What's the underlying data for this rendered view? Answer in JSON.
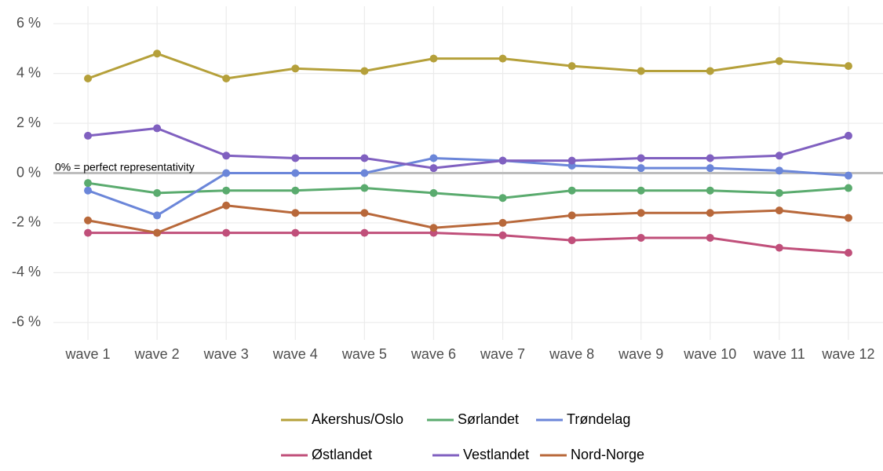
{
  "chart_data": {
    "type": "line",
    "categories": [
      "wave 1",
      "wave 2",
      "wave 3",
      "wave 4",
      "wave 5",
      "wave 6",
      "wave 7",
      "wave 8",
      "wave 9",
      "wave 10",
      "wave 11",
      "wave 12"
    ],
    "series": [
      {
        "name": "Akershus/Oslo",
        "color": "#b5a03a",
        "values": [
          3.8,
          4.8,
          3.8,
          4.2,
          4.1,
          4.6,
          4.6,
          4.3,
          4.1,
          4.1,
          4.5,
          4.3
        ]
      },
      {
        "name": "Sørlandet",
        "color": "#5aab6e",
        "values": [
          -0.4,
          -0.8,
          -0.7,
          -0.7,
          -0.6,
          -0.8,
          -1.0,
          -0.7,
          -0.7,
          -0.7,
          -0.8,
          -0.6
        ]
      },
      {
        "name": "Trøndelag",
        "color": "#6b86d9",
        "values": [
          -0.7,
          -1.7,
          0.0,
          0.0,
          0.0,
          0.6,
          0.5,
          0.3,
          0.2,
          0.2,
          0.1,
          -0.1
        ]
      },
      {
        "name": "Østlandet",
        "color": "#c04f7a",
        "values": [
          -2.4,
          -2.4,
          -2.4,
          -2.4,
          -2.4,
          -2.4,
          -2.5,
          -2.7,
          -2.6,
          -2.6,
          -3.0,
          -3.2
        ]
      },
      {
        "name": "Vestlandet",
        "color": "#8060c0",
        "values": [
          1.5,
          1.8,
          0.7,
          0.6,
          0.6,
          0.2,
          0.5,
          0.5,
          0.6,
          0.6,
          0.7,
          1.5
        ]
      },
      {
        "name": "Nord-Norge",
        "color": "#b8683a",
        "values": [
          -1.9,
          -2.4,
          -1.3,
          -1.6,
          -1.6,
          -2.2,
          -2.0,
          -1.7,
          -1.6,
          -1.6,
          -1.5,
          -1.8
        ]
      }
    ],
    "ylim": [
      -6.7,
      6.7
    ],
    "yticks": [
      {
        "value": -6,
        "label": "-6 %"
      },
      {
        "value": -4,
        "label": "-4 %"
      },
      {
        "value": -2,
        "label": "-2 %"
      },
      {
        "value": 0,
        "label": "0 %"
      },
      {
        "value": 2,
        "label": "2 %"
      },
      {
        "value": 4,
        "label": "4 %"
      },
      {
        "value": 6,
        "label": "6 %"
      }
    ],
    "reference_line": 0,
    "annotation": "0% = perfect representativity",
    "grid": true,
    "legend_position": "bottom"
  }
}
